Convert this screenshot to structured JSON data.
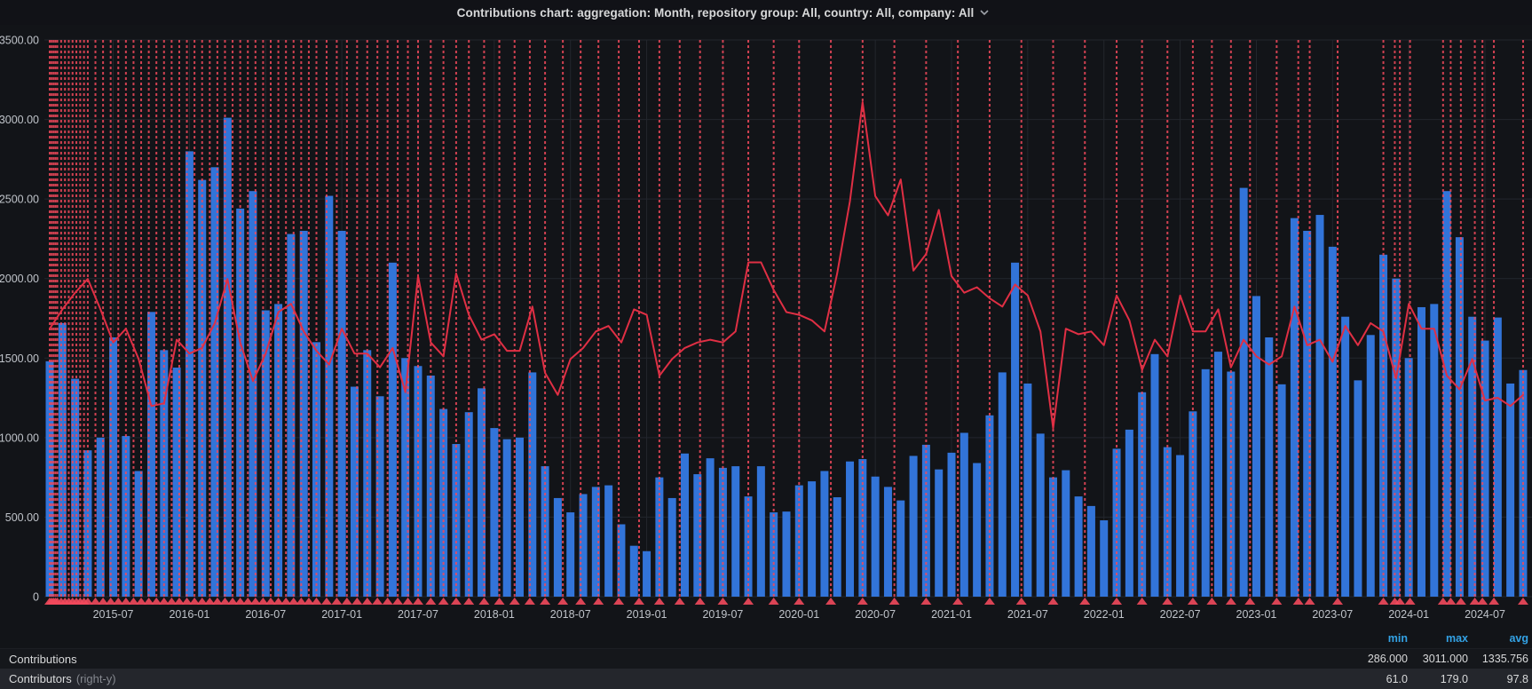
{
  "title_bar": {
    "title": "Contributions chart: aggregation: Month, repository group: All, country: All, company: All",
    "chevron_icon": "chevron-down"
  },
  "legend": {
    "headers": [
      "min",
      "max",
      "avg"
    ],
    "rows": [
      {
        "label": "Contributions",
        "suffix": "",
        "min": "286.000",
        "max": "3011.000",
        "avg": "1335.756",
        "highlighted": false
      },
      {
        "label": "Contributors",
        "suffix": "(right-y)",
        "min": "61.0",
        "max": "179.0",
        "avg": "97.8",
        "highlighted": true
      }
    ]
  },
  "colors": {
    "background": "#121418",
    "bar_blue": "#3274D9",
    "line_red": "#E02F44",
    "annotation_red": "#F2495C",
    "gridline": "#23262d",
    "axis_text": "#bfc3c9",
    "legend_header_blue": "#33a2e5"
  },
  "chart_data": {
    "type": "bar",
    "title": "Contributions chart: aggregation: Month, repository group: All, country: All, company: All",
    "xlabel": "",
    "ylabel": "",
    "y_left": {
      "min": 0,
      "max": 3500,
      "tick_step": 500,
      "tick_labels": [
        "3500.00",
        "3000.00",
        "2500.00",
        "2000.00",
        "1500.00",
        "1000.00",
        "500.00",
        "0"
      ]
    },
    "y_right": {
      "visible": false,
      "note": "right-y axis hidden; line plotted at value*17.37 on left scale"
    },
    "x_tick_labels": [
      "2015-07",
      "2016-01",
      "2016-07",
      "2017-01",
      "2017-07",
      "2018-01",
      "2018-07",
      "2019-01",
      "2019-07",
      "2020-01",
      "2020-07",
      "2021-01",
      "2021-07",
      "2022-01",
      "2022-07",
      "2023-01",
      "2023-07",
      "2024-01",
      "2024-07"
    ],
    "grid": true,
    "legend_position": "bottom-table",
    "months": [
      "2015-02",
      "2015-03",
      "2015-04",
      "2015-05",
      "2015-06",
      "2015-07",
      "2015-08",
      "2015-09",
      "2015-10",
      "2015-11",
      "2015-12",
      "2016-01",
      "2016-02",
      "2016-03",
      "2016-04",
      "2016-05",
      "2016-06",
      "2016-07",
      "2016-08",
      "2016-09",
      "2016-10",
      "2016-11",
      "2016-12",
      "2017-01",
      "2017-02",
      "2017-03",
      "2017-04",
      "2017-05",
      "2017-06",
      "2017-07",
      "2017-08",
      "2017-09",
      "2017-10",
      "2017-11",
      "2017-12",
      "2018-01",
      "2018-02",
      "2018-03",
      "2018-04",
      "2018-05",
      "2018-06",
      "2018-07",
      "2018-08",
      "2018-09",
      "2018-10",
      "2018-11",
      "2018-12",
      "2019-01",
      "2019-02",
      "2019-03",
      "2019-04",
      "2019-05",
      "2019-06",
      "2019-07",
      "2019-08",
      "2019-09",
      "2019-10",
      "2019-11",
      "2019-12",
      "2020-01",
      "2020-02",
      "2020-03",
      "2020-04",
      "2020-05",
      "2020-06",
      "2020-07",
      "2020-08",
      "2020-09",
      "2020-10",
      "2020-11",
      "2020-12",
      "2021-01",
      "2021-02",
      "2021-03",
      "2021-04",
      "2021-05",
      "2021-06",
      "2021-07",
      "2021-08",
      "2021-09",
      "2021-10",
      "2021-11",
      "2021-12",
      "2022-01",
      "2022-02",
      "2022-03",
      "2022-04",
      "2022-05",
      "2022-06",
      "2022-07",
      "2022-08",
      "2022-09",
      "2022-10",
      "2022-11",
      "2022-12",
      "2023-01",
      "2023-02",
      "2023-03",
      "2023-04",
      "2023-05",
      "2023-06",
      "2023-07",
      "2023-08",
      "2023-09",
      "2023-10",
      "2023-11",
      "2023-12",
      "2024-01",
      "2024-02",
      "2024-03",
      "2024-04",
      "2024-05",
      "2024-06",
      "2024-07",
      "2024-08",
      "2024-09",
      "2024-10"
    ],
    "series": [
      {
        "name": "Contributions",
        "type": "bar",
        "axis": "left",
        "color": "#3274D9",
        "stats": {
          "min": 286.0,
          "max": 3011.0,
          "avg": 1335.756
        },
        "values": [
          1480,
          1720,
          1370,
          920,
          1000,
          1630,
          1010,
          790,
          1790,
          1550,
          1440,
          2800,
          2620,
          2700,
          3011,
          2440,
          2550,
          1800,
          1840,
          2280,
          2300,
          1600,
          2520,
          2300,
          1320,
          1550,
          1260,
          2100,
          1500,
          1450,
          1390,
          1180,
          960,
          1160,
          1310,
          1060,
          990,
          1000,
          1410,
          820,
          620,
          530,
          645,
          690,
          700,
          455,
          320,
          286,
          750,
          620,
          900,
          770,
          870,
          810,
          820,
          630,
          820,
          530,
          535,
          700,
          725,
          790,
          625,
          850,
          865,
          755,
          690,
          605,
          885,
          955,
          800,
          905,
          1030,
          840,
          1140,
          1410,
          2100,
          1340,
          1025,
          750,
          795,
          630,
          570,
          480,
          930,
          1050,
          1285,
          1525,
          940,
          890,
          1165,
          1430,
          1540,
          1415,
          2570,
          1890,
          1630,
          1335,
          2380,
          2300,
          2400,
          2200,
          1760,
          1360,
          1645,
          2150,
          2000,
          1500,
          1820,
          1840,
          2550,
          2260,
          1760,
          1610,
          1755,
          1340,
          1425
        ]
      },
      {
        "name": "Contributors",
        "type": "line",
        "axis": "right",
        "color": "#E02F44",
        "stats": {
          "min": 61.0,
          "max": 179.0,
          "avg": 97.8
        },
        "right_to_left_scale": 17.37,
        "values": [
          97,
          104,
          110,
          115,
          104,
          92,
          97,
          86,
          69,
          70,
          93,
          88,
          90,
          99,
          115,
          92,
          78,
          88,
          103,
          106,
          96,
          89,
          84,
          97,
          88,
          88,
          83,
          90,
          74,
          116,
          92,
          87,
          117,
          102,
          93,
          95,
          89,
          89,
          105,
          81,
          73,
          86,
          90,
          96,
          98,
          92,
          104,
          102,
          80,
          86,
          90,
          92,
          93,
          92,
          96,
          121,
          121,
          111,
          103,
          102,
          100,
          96,
          117,
          143,
          179,
          145,
          138,
          151,
          118,
          124,
          140,
          116,
          110,
          112,
          108,
          105,
          113,
          109,
          96,
          61,
          97,
          95,
          96,
          91,
          109,
          100,
          82,
          93,
          87,
          109,
          96,
          96,
          104,
          83,
          93,
          87,
          84,
          87,
          105,
          91,
          93,
          85,
          98,
          91,
          99,
          96,
          79,
          106,
          97,
          97,
          80,
          75,
          86,
          71,
          72,
          69,
          73
        ]
      }
    ],
    "annotations_month_positions": [
      0.0,
      0.15,
      0.3,
      0.45,
      0.6,
      0.9,
      1.2,
      1.5,
      1.8,
      2.1,
      2.4,
      2.7,
      3.0,
      3.6,
      4.2,
      4.8,
      5.4,
      6.0,
      6.6,
      7.2,
      7.8,
      8.4,
      9.0,
      9.6,
      10.2,
      10.8,
      11.4,
      12.0,
      12.6,
      13.2,
      13.8,
      14.4,
      15.0,
      15.6,
      16.2,
      16.8,
      17.4,
      18.0,
      18.6,
      19.2,
      19.8,
      20.4,
      21.0,
      21.8,
      22.6,
      23.4,
      24.2,
      25.0,
      25.8,
      26.6,
      27.4,
      28.2,
      29.0,
      30.0,
      31.0,
      32.0,
      33.0,
      34.2,
      35.4,
      36.6,
      37.8,
      39.0,
      40.4,
      41.8,
      43.2,
      44.8,
      46.4,
      48.0,
      49.6,
      51.2,
      53.0,
      55.0,
      57.0,
      59.0,
      61.5,
      64.0,
      66.5,
      69.0,
      71.5,
      74.0,
      76.5,
      79.0,
      81.5,
      84.0,
      86.0,
      88.0,
      90.0,
      91.5,
      93.0,
      94.5,
      96.6,
      98.3,
      99.2,
      101.4,
      105.0,
      105.9,
      106.3,
      107.1,
      109.7,
      110.3,
      111.1,
      112.2,
      112.8,
      113.7,
      116.0
    ]
  }
}
